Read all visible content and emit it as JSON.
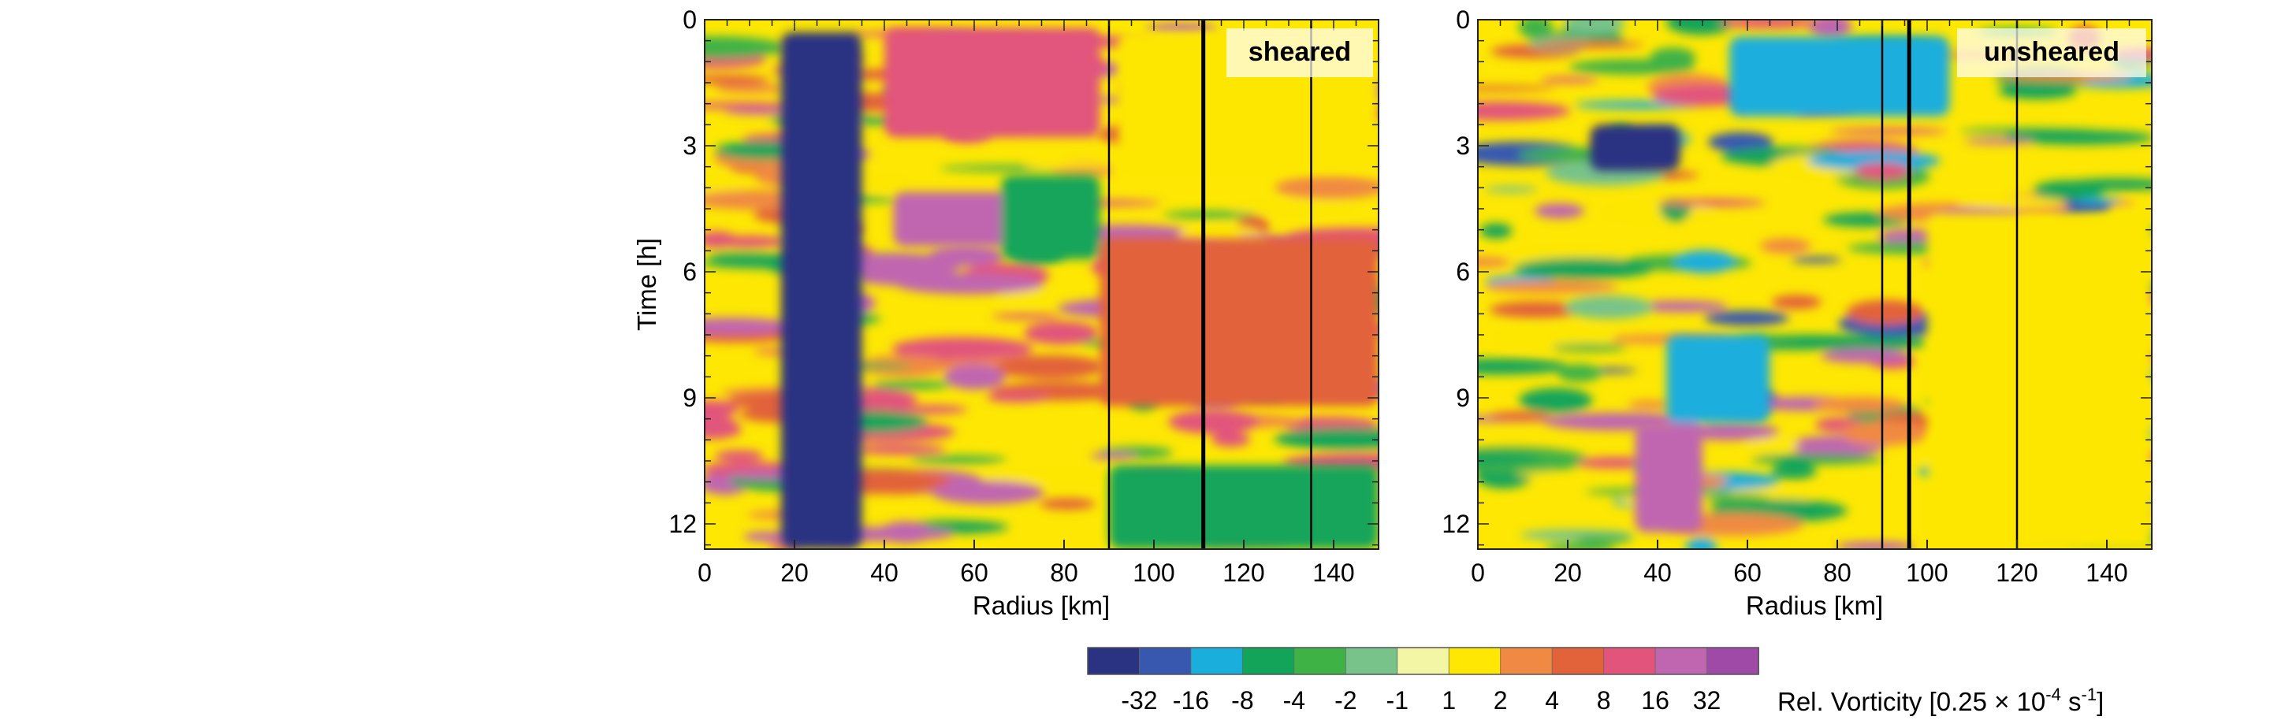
{
  "chart_data": [
    {
      "type": "heatmap",
      "panel_label": "sheared",
      "xlabel": "Radius [km]",
      "ylabel": "Time [h]",
      "xlim": [
        0,
        150
      ],
      "ylim": [
        12.6,
        0
      ],
      "xticks": [
        0,
        20,
        40,
        60,
        80,
        100,
        120,
        140
      ],
      "yticks": [
        0,
        3,
        6,
        9,
        12
      ],
      "vertical_lines_km": [
        {
          "x": 90,
          "style": "thin"
        },
        {
          "x": 111,
          "style": "thick"
        },
        {
          "x": 135,
          "style": "thin"
        }
      ],
      "features": [
        {
          "band": -32,
          "r": [
            17,
            35
          ],
          "t": [
            0.3,
            12.6
          ]
        },
        {
          "band": 8,
          "r": [
            40,
            88
          ],
          "t": [
            0.2,
            2.8
          ]
        },
        {
          "band": 4,
          "r": [
            88,
            150
          ],
          "t": [
            5.2,
            9.2
          ]
        },
        {
          "band": 16,
          "r": [
            42,
            72
          ],
          "t": [
            4.1,
            5.4
          ]
        },
        {
          "band": -4,
          "r": [
            66,
            88
          ],
          "t": [
            3.7,
            5.7
          ]
        },
        {
          "band": -4,
          "r": [
            90,
            150
          ],
          "t": [
            10.6,
            12.6
          ]
        },
        {
          "band": 1,
          "r": [
            92,
            150
          ],
          "t": [
            0.3,
            3.6
          ]
        }
      ]
    },
    {
      "type": "heatmap",
      "panel_label": "unsheared",
      "xlabel": "Radius [km]",
      "ylabel": "",
      "xlim": [
        0,
        150
      ],
      "ylim": [
        12.6,
        0
      ],
      "xticks": [
        0,
        20,
        40,
        60,
        80,
        100,
        120,
        140
      ],
      "yticks": [
        0,
        3,
        6,
        9,
        12
      ],
      "vertical_lines_km": [
        {
          "x": 90,
          "style": "thin"
        },
        {
          "x": 96,
          "style": "thick"
        },
        {
          "x": 120,
          "style": "thin"
        }
      ],
      "features": [
        {
          "band": -32,
          "r": [
            25,
            45
          ],
          "t": [
            2.5,
            3.6
          ]
        },
        {
          "band": -8,
          "r": [
            56,
            105
          ],
          "t": [
            0.4,
            2.3
          ]
        },
        {
          "band": 16,
          "r": [
            35,
            50
          ],
          "t": [
            9.6,
            12.2
          ]
        },
        {
          "band": 1,
          "r": [
            100,
            150
          ],
          "t": [
            4.6,
            12.6
          ]
        },
        {
          "band": -8,
          "r": [
            42,
            65
          ],
          "t": [
            7.5,
            9.6
          ]
        }
      ]
    }
  ],
  "colorbar": {
    "label_main": "Rel. Vorticity [0.25 × 10",
    "label_exp1": "-4",
    "label_mid": " s",
    "label_exp2": "-1",
    "label_end": "]",
    "tick_labels": [
      "-32",
      "-16",
      "-8",
      "-4",
      "-2",
      "-1",
      "1",
      "2",
      "4",
      "8",
      "16",
      "32"
    ],
    "colors": [
      "#2a3282",
      "#3858b0",
      "#1aaedc",
      "#12a55a",
      "#3fb246",
      "#78c38a",
      "#f3f6a5",
      "#fde703",
      "#f08a42",
      "#e2623a",
      "#e2547c",
      "#c066b0",
      "#a04aa8"
    ]
  }
}
